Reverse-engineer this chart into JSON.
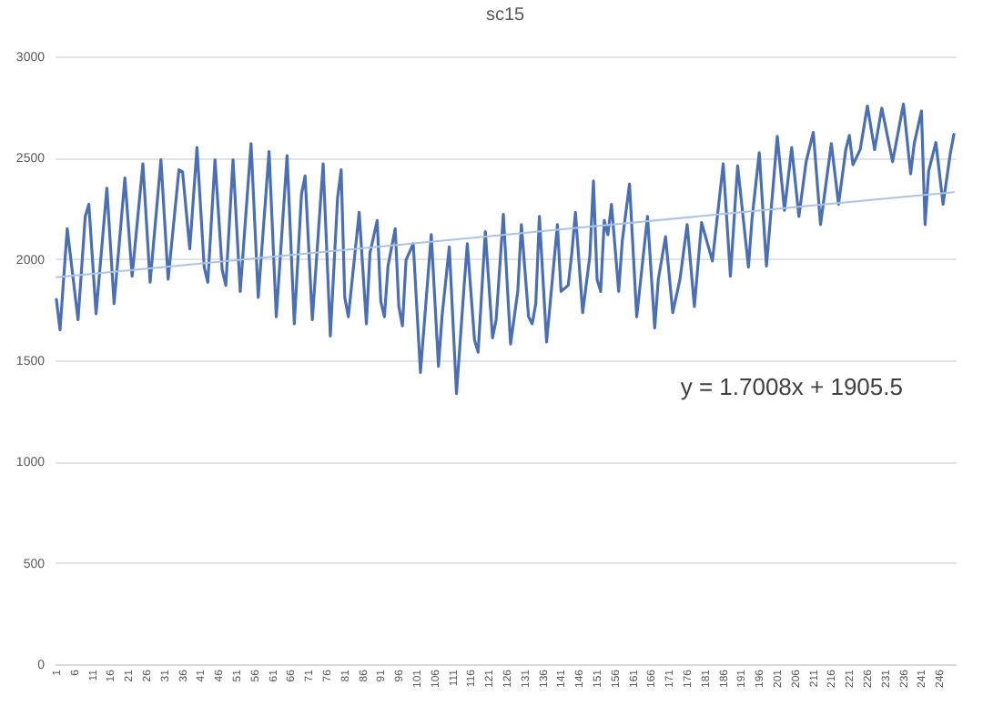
{
  "chart_data": {
    "type": "line",
    "title": "sc15",
    "xlim": [
      0.5,
      250.5
    ],
    "ylim": [
      0,
      3000
    ],
    "yticks": [
      0,
      500,
      1000,
      1500,
      2000,
      2500,
      3000
    ],
    "xticks": [
      1,
      6,
      11,
      16,
      21,
      26,
      31,
      36,
      41,
      46,
      51,
      56,
      61,
      66,
      71,
      76,
      81,
      86,
      91,
      96,
      101,
      106,
      111,
      116,
      121,
      126,
      131,
      136,
      141,
      146,
      151,
      156,
      161,
      166,
      171,
      176,
      181,
      186,
      191,
      196,
      201,
      206,
      211,
      216,
      221,
      226,
      231,
      236,
      241,
      246
    ],
    "grid": "y",
    "annotations": [
      "y = 1.7008x + 1905.5"
    ],
    "series": [
      {
        "color": "#4a6fb5",
        "x": [
          1,
          2,
          4,
          7,
          9,
          10,
          12,
          15,
          17,
          20,
          22,
          25,
          27,
          30,
          32,
          35,
          36,
          38,
          40,
          42,
          43,
          45,
          47,
          48,
          50,
          52,
          55,
          57,
          60,
          62,
          65,
          67,
          69,
          70,
          72,
          75,
          77,
          79,
          80,
          81,
          82,
          85,
          87,
          88,
          90,
          91,
          92,
          93,
          95,
          96,
          97,
          98,
          100,
          102,
          105,
          107,
          108,
          110,
          112,
          114,
          115,
          117,
          118,
          120,
          122,
          123,
          125,
          127,
          129,
          130,
          132,
          133,
          134,
          135,
          137,
          140,
          141,
          143,
          144,
          145,
          147,
          149,
          150,
          151,
          152,
          153,
          154,
          155,
          157,
          158,
          160,
          162,
          165,
          167,
          168,
          170,
          172,
          174,
          176,
          178,
          180,
          183,
          186,
          188,
          190,
          193,
          194,
          196,
          198,
          201,
          203,
          205,
          207,
          209,
          211,
          213,
          216,
          218,
          220,
          221,
          222,
          224,
          226,
          228,
          230,
          233,
          236,
          238,
          239,
          241,
          242,
          243,
          245,
          247,
          249,
          250
        ],
        "values": [
          1800,
          1650,
          2150,
          1700,
          2210,
          2270,
          1730,
          2350,
          1780,
          2400,
          1915,
          2470,
          1885,
          2490,
          1900,
          2440,
          2430,
          2050,
          2550,
          1960,
          1885,
          2490,
          1945,
          1870,
          2490,
          1840,
          2570,
          1810,
          2530,
          1715,
          2510,
          1680,
          2320,
          2410,
          1700,
          2470,
          1620,
          2300,
          2440,
          1810,
          1715,
          2230,
          1680,
          2030,
          2190,
          1790,
          1715,
          1965,
          2150,
          1765,
          1670,
          1995,
          2075,
          1440,
          2120,
          1470,
          1720,
          2060,
          1335,
          1840,
          2075,
          1600,
          1540,
          2135,
          1610,
          1700,
          2220,
          1580,
          1840,
          2170,
          1715,
          1680,
          1780,
          2210,
          1590,
          2170,
          1840,
          1870,
          2030,
          2230,
          1735,
          2015,
          2385,
          1900,
          1840,
          2190,
          2120,
          2270,
          1840,
          2090,
          2370,
          1715,
          2210,
          1660,
          1900,
          2110,
          1735,
          1900,
          2170,
          1765,
          2180,
          1990,
          2470,
          1915,
          2460,
          1960,
          2200,
          2525,
          1965,
          2605,
          2240,
          2550,
          2210,
          2480,
          2625,
          2170,
          2570,
          2270,
          2540,
          2610,
          2465,
          2540,
          2755,
          2540,
          2745,
          2480,
          2765,
          2420,
          2570,
          2730,
          2170,
          2435,
          2575,
          2270,
          2520,
          2615
        ]
      },
      {
        "type": "line",
        "color": "#a9c4e8",
        "x": [
          1,
          250
        ],
        "values": [
          1910,
          2330
        ]
      }
    ]
  }
}
